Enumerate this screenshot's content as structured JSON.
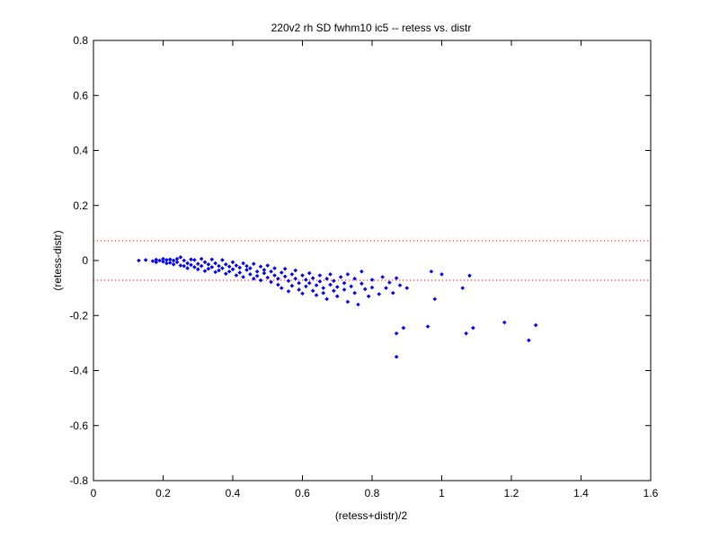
{
  "chart_data": {
    "type": "scatter",
    "title": "220v2 rh SD fwhm10 ic5 -- retess vs. distr",
    "xlabel": "(retess+distr)/2",
    "ylabel": "(retess-distr)",
    "xlim": [
      0,
      1.6
    ],
    "ylim": [
      -0.8,
      0.8
    ],
    "xticks": [
      "0",
      "0.2",
      "0.4",
      "0.6",
      "0.8",
      "1",
      "1.2",
      "1.4",
      "1.6"
    ],
    "yticks": [
      "-0.8",
      "-0.6",
      "-0.4",
      "-0.2",
      "0",
      "0.2",
      "0.4",
      "0.6",
      "0.8"
    ],
    "grid": false,
    "marker_color": "#0000ff",
    "reference_line_color": "#ff0000",
    "reference_lines_y": [
      0.072,
      -0.072
    ],
    "series": [
      {
        "points": [
          [
            0.13,
            0.0
          ],
          [
            0.15,
            0.002
          ],
          [
            0.17,
            -0.002
          ],
          [
            0.18,
            0.003
          ],
          [
            0.18,
            -0.006
          ],
          [
            0.19,
            0.0
          ],
          [
            0.2,
            -0.004
          ],
          [
            0.2,
            0.006
          ],
          [
            0.21,
            -0.01
          ],
          [
            0.21,
            0.002
          ],
          [
            0.22,
            -0.008
          ],
          [
            0.22,
            0.004
          ],
          [
            0.23,
            -0.014
          ],
          [
            0.23,
            0.0
          ],
          [
            0.24,
            -0.006
          ],
          [
            0.24,
            0.006
          ],
          [
            0.25,
            -0.018
          ],
          [
            0.25,
            0.012
          ],
          [
            0.26,
            -0.02
          ],
          [
            0.26,
            0.0
          ],
          [
            0.27,
            -0.01
          ],
          [
            0.27,
            -0.028
          ],
          [
            0.28,
            0.004
          ],
          [
            0.28,
            -0.016
          ],
          [
            0.29,
            -0.024
          ],
          [
            0.29,
            0.002
          ],
          [
            0.3,
            -0.012
          ],
          [
            0.3,
            -0.032
          ],
          [
            0.31,
            0.006
          ],
          [
            0.31,
            -0.02
          ],
          [
            0.32,
            -0.038
          ],
          [
            0.32,
            -0.006
          ],
          [
            0.33,
            -0.014
          ],
          [
            0.33,
            -0.03
          ],
          [
            0.34,
            0.004
          ],
          [
            0.34,
            -0.024
          ],
          [
            0.35,
            -0.042
          ],
          [
            0.35,
            -0.01
          ],
          [
            0.36,
            -0.02
          ],
          [
            0.36,
            -0.036
          ],
          [
            0.37,
            0.002
          ],
          [
            0.37,
            -0.028
          ],
          [
            0.38,
            -0.048
          ],
          [
            0.38,
            -0.014
          ],
          [
            0.39,
            -0.022
          ],
          [
            0.39,
            -0.04
          ],
          [
            0.4,
            -0.006
          ],
          [
            0.4,
            -0.032
          ],
          [
            0.41,
            -0.054
          ],
          [
            0.41,
            -0.018
          ],
          [
            0.42,
            -0.026
          ],
          [
            0.42,
            -0.044
          ],
          [
            0.43,
            -0.01
          ],
          [
            0.43,
            -0.06
          ],
          [
            0.44,
            -0.034
          ],
          [
            0.44,
            -0.02
          ],
          [
            0.45,
            -0.05
          ],
          [
            0.45,
            -0.028
          ],
          [
            0.46,
            -0.066
          ],
          [
            0.46,
            -0.012
          ],
          [
            0.47,
            -0.04
          ],
          [
            0.47,
            -0.056
          ],
          [
            0.48,
            -0.022
          ],
          [
            0.48,
            -0.072
          ],
          [
            0.49,
            -0.034
          ],
          [
            0.49,
            -0.046
          ],
          [
            0.5,
            -0.062
          ],
          [
            0.5,
            -0.018
          ],
          [
            0.51,
            -0.078
          ],
          [
            0.51,
            -0.04
          ],
          [
            0.52,
            -0.054
          ],
          [
            0.52,
            -0.028
          ],
          [
            0.53,
            -0.088
          ],
          [
            0.53,
            -0.066
          ],
          [
            0.54,
            -0.044
          ],
          [
            0.54,
            -0.1
          ],
          [
            0.55,
            -0.058
          ],
          [
            0.55,
            -0.03
          ],
          [
            0.56,
            -0.074
          ],
          [
            0.56,
            -0.112
          ],
          [
            0.57,
            -0.05
          ],
          [
            0.57,
            -0.092
          ],
          [
            0.58,
            -0.066
          ],
          [
            0.58,
            -0.036
          ],
          [
            0.59,
            -0.082
          ],
          [
            0.59,
            -0.106
          ],
          [
            0.6,
            -0.054
          ],
          [
            0.6,
            -0.12
          ],
          [
            0.61,
            -0.07
          ],
          [
            0.61,
            -0.094
          ],
          [
            0.62,
            -0.046
          ],
          [
            0.62,
            -0.082
          ],
          [
            0.63,
            -0.11
          ],
          [
            0.63,
            -0.064
          ],
          [
            0.64,
            -0.126
          ],
          [
            0.64,
            -0.09
          ],
          [
            0.65,
            -0.054
          ],
          [
            0.65,
            -0.076
          ],
          [
            0.66,
            -0.1
          ],
          [
            0.66,
            -0.118
          ],
          [
            0.67,
            -0.066
          ],
          [
            0.67,
            -0.14
          ],
          [
            0.68,
            -0.088
          ],
          [
            0.68,
            -0.05
          ],
          [
            0.69,
            -0.11
          ],
          [
            0.69,
            -0.074
          ],
          [
            0.7,
            -0.096
          ],
          [
            0.7,
            -0.13
          ],
          [
            0.71,
            -0.06
          ],
          [
            0.72,
            -0.106
          ],
          [
            0.72,
            -0.082
          ],
          [
            0.73,
            -0.15
          ],
          [
            0.73,
            -0.05
          ],
          [
            0.74,
            -0.094
          ],
          [
            0.75,
            -0.118
          ],
          [
            0.75,
            -0.066
          ],
          [
            0.76,
            -0.16
          ],
          [
            0.77,
            -0.084
          ],
          [
            0.77,
            -0.04
          ],
          [
            0.78,
            -0.104
          ],
          [
            0.79,
            -0.13
          ],
          [
            0.8,
            -0.07
          ],
          [
            0.8,
            -0.098
          ],
          [
            0.82,
            -0.122
          ],
          [
            0.83,
            -0.06
          ],
          [
            0.84,
            -0.1
          ],
          [
            0.85,
            -0.08
          ],
          [
            0.86,
            -0.118
          ],
          [
            0.87,
            -0.064
          ],
          [
            0.88,
            -0.09
          ],
          [
            0.9,
            -0.1
          ],
          [
            0.97,
            -0.04
          ],
          [
            0.98,
            -0.14
          ],
          [
            1.0,
            -0.05
          ],
          [
            1.06,
            -0.1
          ],
          [
            1.08,
            -0.055
          ],
          [
            0.87,
            -0.265
          ],
          [
            0.89,
            -0.245
          ],
          [
            0.87,
            -0.35
          ],
          [
            0.96,
            -0.24
          ],
          [
            1.07,
            -0.265
          ],
          [
            1.09,
            -0.245
          ],
          [
            1.18,
            -0.225
          ],
          [
            1.25,
            -0.29
          ],
          [
            1.27,
            -0.235
          ]
        ]
      }
    ]
  }
}
